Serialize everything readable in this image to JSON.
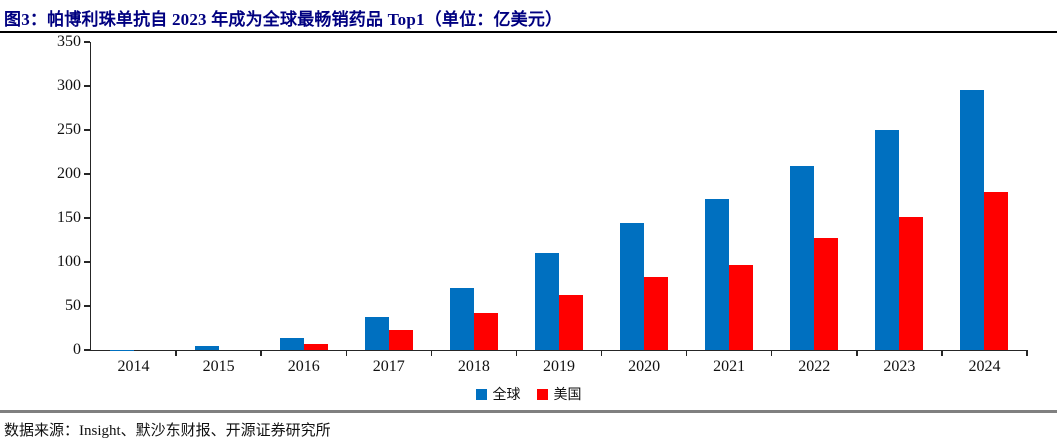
{
  "page": {
    "title": "图3：帕博利珠单抗自 2023 年成为全球最畅销药品 Top1（单位：亿美元）",
    "source_note": "数据来源：Insight、默沙东财报、开源证券研究所"
  },
  "colors": {
    "title_text": "#000080",
    "axis": "#262626",
    "footer_divider": "#808080",
    "global_series": "#0070C0",
    "us_series": "#FF0000"
  },
  "chart_data": {
    "type": "bar",
    "title": "帕博利珠单抗自 2023 年成为全球最畅销药品 Top1",
    "unit": "亿美元",
    "categories": [
      "2014",
      "2015",
      "2016",
      "2017",
      "2018",
      "2019",
      "2020",
      "2021",
      "2022",
      "2023",
      "2024"
    ],
    "series": [
      {
        "name": "全球",
        "color": "#0070C0",
        "values": [
          0.5,
          5,
          14,
          38,
          71,
          110,
          144,
          172,
          209,
          250,
          295
        ]
      },
      {
        "name": "美国",
        "color": "#FF0000",
        "values": [
          0,
          0,
          7,
          23,
          42,
          62,
          83,
          97,
          127,
          151,
          179
        ]
      }
    ],
    "xlabel": "",
    "ylabel": "",
    "ylim": [
      0,
      350
    ],
    "yticks": [
      0,
      50,
      100,
      150,
      200,
      250,
      300,
      350
    ],
    "grid": false,
    "legend_position": "bottom"
  }
}
